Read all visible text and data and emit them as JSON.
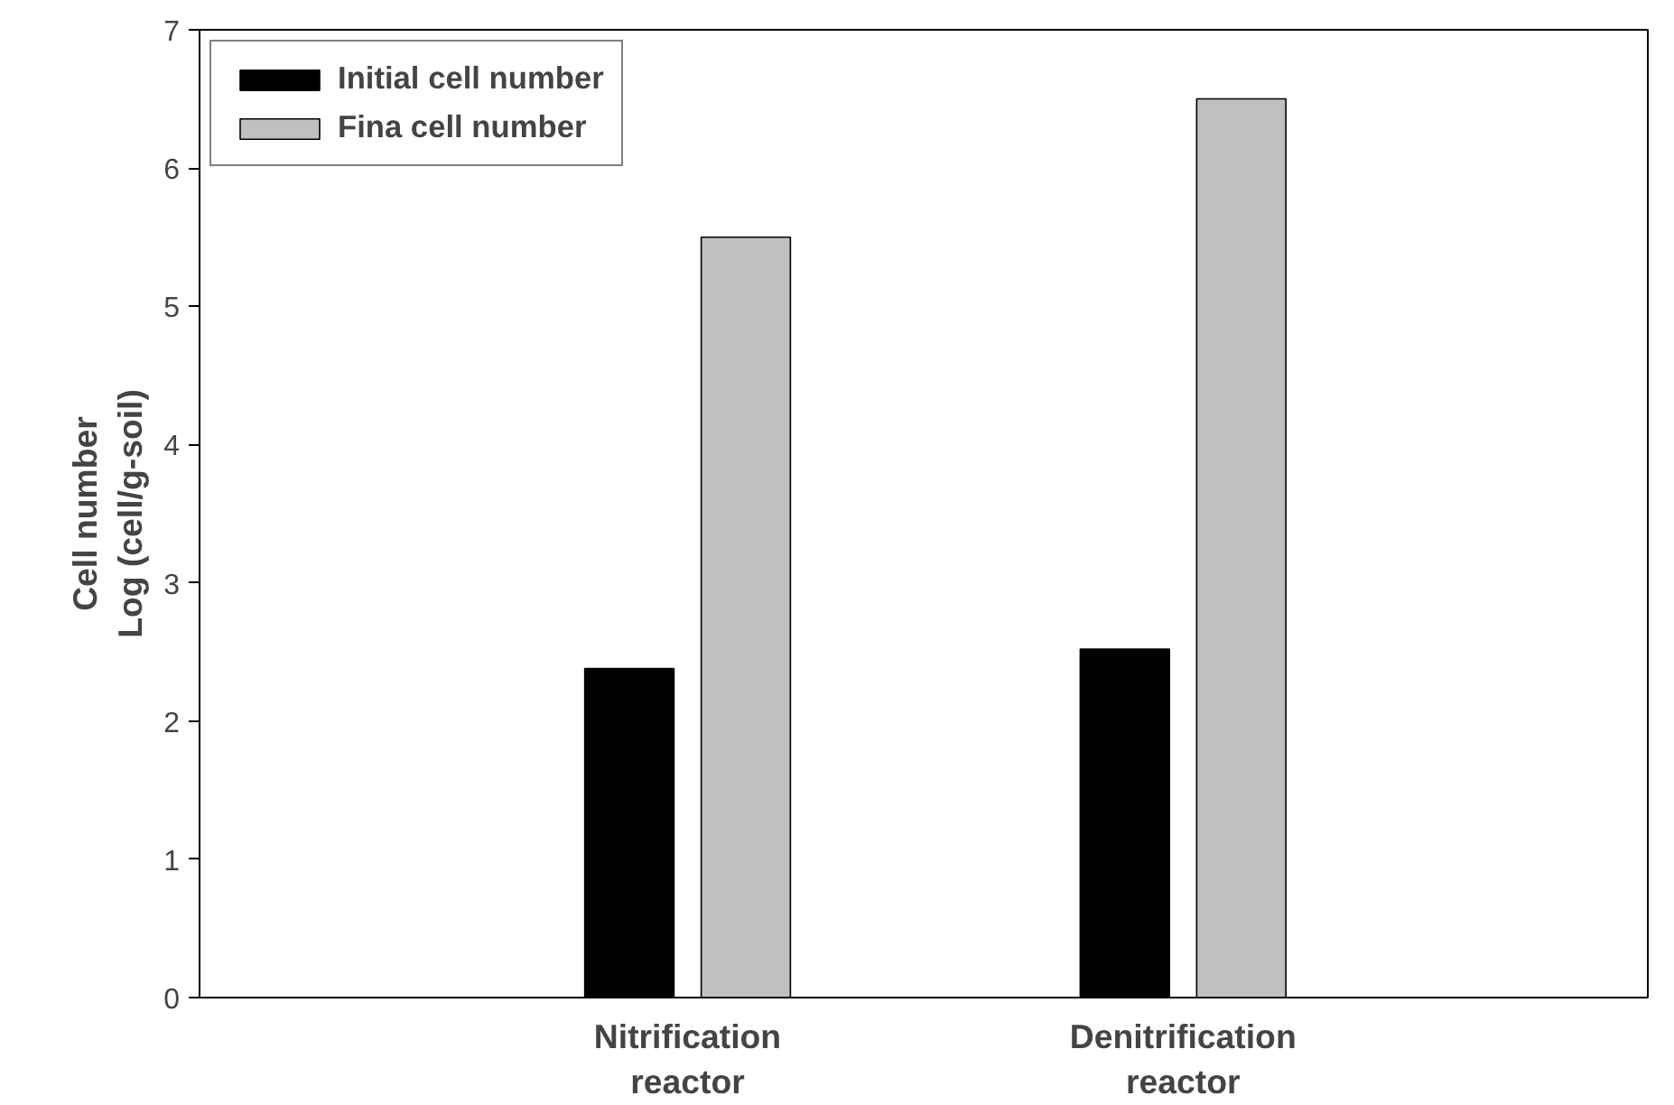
{
  "chart_data": {
    "type": "bar",
    "ylabel": "Cell number\nLog (cell/g-soil)",
    "categories": [
      "Nitrification\nreactor",
      "Denitrification\nreactor"
    ],
    "series": [
      {
        "name": "Initial cell number",
        "color": "#000000",
        "values": [
          2.38,
          2.52
        ]
      },
      {
        "name": "Fina cell number",
        "color": "#c0c0c0",
        "values": [
          5.5,
          6.5
        ]
      }
    ],
    "ylim": [
      0,
      7
    ],
    "yticks": [
      0,
      1,
      2,
      3,
      4,
      5,
      6,
      7
    ],
    "grid": false,
    "legend": "top left"
  }
}
